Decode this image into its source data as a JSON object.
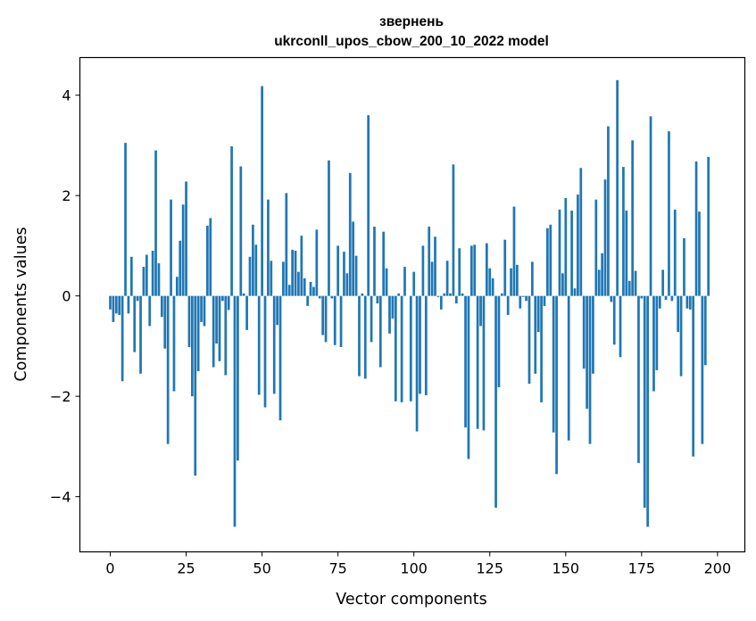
{
  "chart_data": {
    "type": "bar",
    "title": "звернень",
    "subtitle": "ukrconll_upos_cbow_200_10_2022 model",
    "xlabel": "Vector components",
    "ylabel": "Components values",
    "xlim": [
      -10,
      209
    ],
    "ylim": [
      -5.1,
      4.75
    ],
    "xticks": [
      0,
      25,
      50,
      75,
      100,
      125,
      150,
      175,
      200
    ],
    "yticks": [
      -4,
      -2,
      0,
      2,
      4
    ],
    "xtick_labels": [
      "0",
      "25",
      "50",
      "75",
      "100",
      "125",
      "150",
      "175",
      "200"
    ],
    "ytick_labels": [
      "−4",
      "−2",
      "0",
      "2",
      "4"
    ],
    "bar_color": "#1f77b4",
    "values": [
      -0.27,
      -0.52,
      -0.35,
      -0.38,
      -1.7,
      3.05,
      -0.35,
      0.78,
      -1.12,
      -0.1,
      -1.55,
      0.58,
      0.82,
      -0.6,
      0.9,
      2.9,
      0.65,
      -0.42,
      -1.05,
      -2.95,
      1.92,
      -1.9,
      0.38,
      1.1,
      1.82,
      2.28,
      -1.02,
      -2.0,
      -3.58,
      -1.5,
      -0.52,
      -0.6,
      1.4,
      1.55,
      -1.42,
      -0.95,
      -1.3,
      -0.1,
      -1.58,
      -0.28,
      2.98,
      -4.6,
      -3.28,
      2.58,
      0.05,
      -0.68,
      0.78,
      1.42,
      1.02,
      -1.97,
      4.18,
      -2.22,
      1.92,
      0.7,
      -1.95,
      -0.58,
      -2.48,
      0.68,
      2.05,
      0.22,
      0.92,
      0.9,
      0.48,
      1.2,
      0.35,
      -0.2,
      0.28,
      0.18,
      1.32,
      -0.05,
      -0.78,
      -0.92,
      2.7,
      -0.05,
      -0.98,
      1.0,
      -1.02,
      0.88,
      0.45,
      2.45,
      1.48,
      0.8,
      -1.6,
      0.05,
      -1.65,
      3.6,
      -0.92,
      1.38,
      -0.15,
      -1.42,
      1.28,
      0.55,
      -0.75,
      -0.45,
      -2.1,
      0.05,
      -2.12,
      0.58,
      0.0,
      -2.1,
      0.48,
      -2.7,
      -1.95,
      1.0,
      -1.98,
      1.38,
      0.68,
      1.18,
      -0.02,
      -0.27,
      0.05,
      0.7,
      0.05,
      2.62,
      -0.15,
      0.95,
      0.05,
      -2.62,
      -3.25,
      1.0,
      1.02,
      -2.65,
      -0.6,
      -2.68,
      1.05,
      0.55,
      0.35,
      -4.22,
      -1.82,
      0.05,
      1.12,
      -0.38,
      0.55,
      1.78,
      0.62,
      -0.25,
      -0.02,
      -0.1,
      -1.75,
      0.68,
      -1.55,
      -0.72,
      -2.12,
      -0.2,
      1.35,
      1.42,
      -2.72,
      -3.55,
      1.72,
      0.45,
      1.95,
      -2.88,
      1.7,
      0.15,
      2.02,
      2.55,
      -1.45,
      -2.25,
      -2.95,
      -1.55,
      1.92,
      0.52,
      0.85,
      2.32,
      3.38,
      -0.12,
      -0.97,
      4.3,
      -1.22,
      2.57,
      1.7,
      0.3,
      3.1,
      0.5,
      -3.33,
      -0.05,
      -4.22,
      -4.6,
      3.58,
      -1.9,
      -1.48,
      -0.25,
      0.52,
      -0.08,
      3.28,
      -0.1,
      1.72,
      -0.72,
      -1.6,
      1.15,
      -0.25,
      -0.27,
      -3.2,
      2.68,
      1.68,
      -2.95,
      -1.38,
      2.77
    ]
  }
}
